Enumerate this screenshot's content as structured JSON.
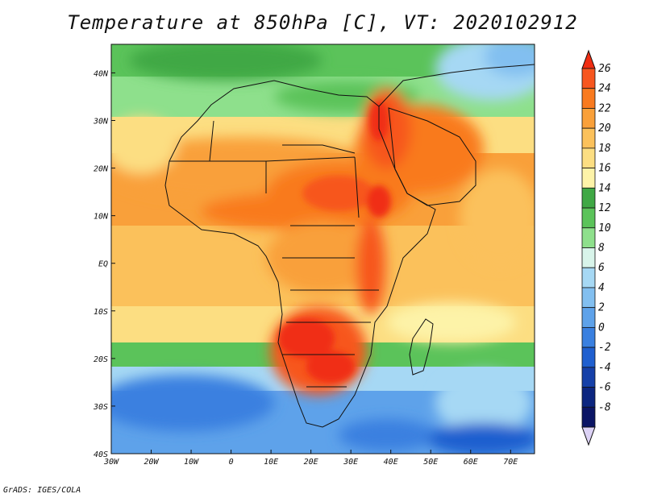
{
  "title": "Temperature at 850hPa [C], VT: 2020102912",
  "credit": "GrADS: IGES/COLA",
  "map": {
    "lon_range": [
      -30,
      76
    ],
    "lat_range": [
      -40,
      46
    ],
    "lon_ticks": [
      "30W",
      "20W",
      "10W",
      "0",
      "10E",
      "20E",
      "30E",
      "40E",
      "50E",
      "60E",
      "70E"
    ],
    "lat_ticks": [
      "40N",
      "30N",
      "20N",
      "10N",
      "EQ",
      "10S",
      "20S",
      "30S",
      "40S"
    ]
  },
  "colorbar": {
    "labels": [
      "26",
      "24",
      "22",
      "20",
      "18",
      "16",
      "14",
      "12",
      "10",
      "8",
      "6",
      "4",
      "2",
      "0",
      "-2",
      "-4",
      "-6",
      "-8"
    ],
    "colors": [
      "#f02d12",
      "#f7561f",
      "#f97a1f",
      "#f9a03a",
      "#fbc15b",
      "#fcde82",
      "#fdf3a8",
      "#3fa845",
      "#5bc35a",
      "#8ee08c",
      "#d8f4ea",
      "#a6d8f4",
      "#82bff0",
      "#5ea2ea",
      "#3a80e0",
      "#1f5fcf",
      "#1540a8",
      "#0c2680",
      "#0b1565"
    ],
    "min_cap_color": "#dcd2f5"
  }
}
